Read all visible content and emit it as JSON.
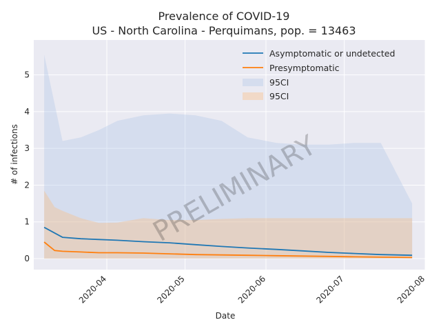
{
  "chart_data": {
    "type": "line",
    "title": "Prevalence of COVID-19",
    "subtitle": "US - North Carolina - Perquimans, pop. = 13463",
    "xlabel": "Date",
    "ylabel": "# of infections",
    "watermark": "PRELIMINARY",
    "x_range": [
      "2020-03-04",
      "2020-08-01"
    ],
    "ylim": [
      -0.3,
      5.95
    ],
    "x_ticks": [
      "2020-04",
      "2020-05",
      "2020-06",
      "2020-07",
      "2020-08"
    ],
    "x_tick_dates": [
      "2020-04-01",
      "2020-05-01",
      "2020-06-01",
      "2020-07-01",
      "2020-08-01"
    ],
    "y_ticks": [
      0,
      1,
      2,
      3,
      4,
      5
    ],
    "grid": true,
    "legend_position": "upper right",
    "legend": [
      "Asymptomatic or undetected",
      "Presymptomatic",
      "95CI",
      "95CI"
    ],
    "series": [
      {
        "name": "Asymptomatic or undetected",
        "color": "#1f77b4",
        "ci_label": "95CI",
        "ci_color": "#aec7e8",
        "x": [
          "2020-03-08",
          "2020-03-15",
          "2020-03-22",
          "2020-03-29",
          "2020-04-05",
          "2020-04-15",
          "2020-04-25",
          "2020-05-05",
          "2020-05-15",
          "2020-05-25",
          "2020-06-05",
          "2020-06-15",
          "2020-06-25",
          "2020-07-05",
          "2020-07-15",
          "2020-07-27"
        ],
        "values": [
          0.85,
          0.58,
          0.54,
          0.52,
          0.5,
          0.46,
          0.43,
          0.38,
          0.33,
          0.29,
          0.25,
          0.21,
          0.17,
          0.14,
          0.11,
          0.09
        ],
        "ci_lower": [
          0.0,
          0.0,
          0.0,
          0.0,
          0.0,
          0.0,
          0.0,
          0.0,
          0.0,
          0.0,
          0.0,
          0.0,
          0.0,
          0.0,
          0.0,
          0.0
        ],
        "ci_upper": [
          5.55,
          3.2,
          3.3,
          3.5,
          3.75,
          3.9,
          3.95,
          3.9,
          3.75,
          3.3,
          3.15,
          3.1,
          3.1,
          3.15,
          3.15,
          1.5
        ]
      },
      {
        "name": "Presymptomatic",
        "color": "#ff7f0e",
        "ci_label": "95CI",
        "ci_color": "#ffbb78",
        "x": [
          "2020-03-08",
          "2020-03-12",
          "2020-03-15",
          "2020-03-22",
          "2020-03-29",
          "2020-04-05",
          "2020-04-15",
          "2020-04-25",
          "2020-05-05",
          "2020-05-15",
          "2020-05-25",
          "2020-06-05",
          "2020-06-15",
          "2020-06-25",
          "2020-07-05",
          "2020-07-15",
          "2020-07-27"
        ],
        "values": [
          0.45,
          0.22,
          0.2,
          0.18,
          0.16,
          0.16,
          0.15,
          0.13,
          0.11,
          0.1,
          0.09,
          0.08,
          0.07,
          0.06,
          0.05,
          0.04,
          0.03
        ],
        "ci_lower": [
          0.0,
          0.0,
          0.0,
          0.0,
          0.0,
          0.0,
          0.0,
          0.0,
          0.0,
          0.0,
          0.0,
          0.0,
          0.0,
          0.0,
          0.0,
          0.0,
          0.0
        ],
        "ci_upper": [
          1.85,
          1.4,
          1.3,
          1.1,
          0.97,
          0.98,
          1.1,
          1.05,
          1.05,
          1.08,
          1.1,
          1.1,
          1.1,
          1.1,
          1.1,
          1.1,
          1.1
        ]
      }
    ]
  }
}
